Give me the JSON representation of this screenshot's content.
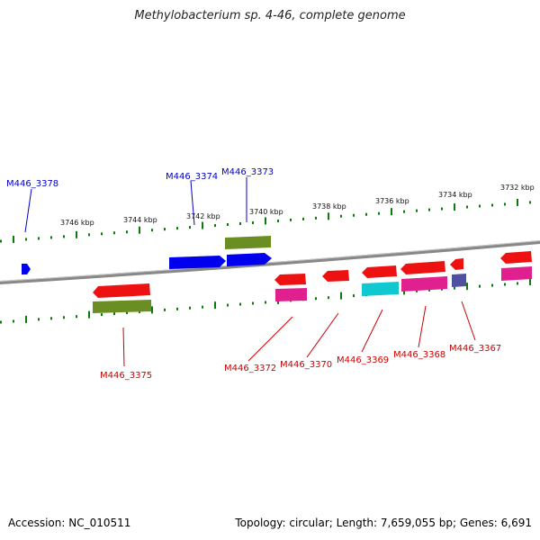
{
  "title": "Methylobacterium sp. 4-46, complete genome",
  "footer": {
    "accession": "Accession: NC_010511",
    "stats": "Topology: circular; Length: 7,659,055 bp; Genes: 6,691"
  },
  "colors": {
    "backbone": "#7f7f7f",
    "tick": "#0a7a0a",
    "plus_label": "#0000cc",
    "minus_label": "#cc0000"
  },
  "scale_ticks": [
    "3746 kbp",
    "3744 kbp",
    "3742 kbp",
    "3740 kbp",
    "3738 kbp",
    "3736 kbp",
    "3734 kbp",
    "3732 kbp"
  ],
  "gene_labels": [
    "M446_3378",
    "M446_3374",
    "M446_3373",
    "M446_3375",
    "M446_3372",
    "M446_3370",
    "M446_3369",
    "M446_3368",
    "M446_3367"
  ]
}
